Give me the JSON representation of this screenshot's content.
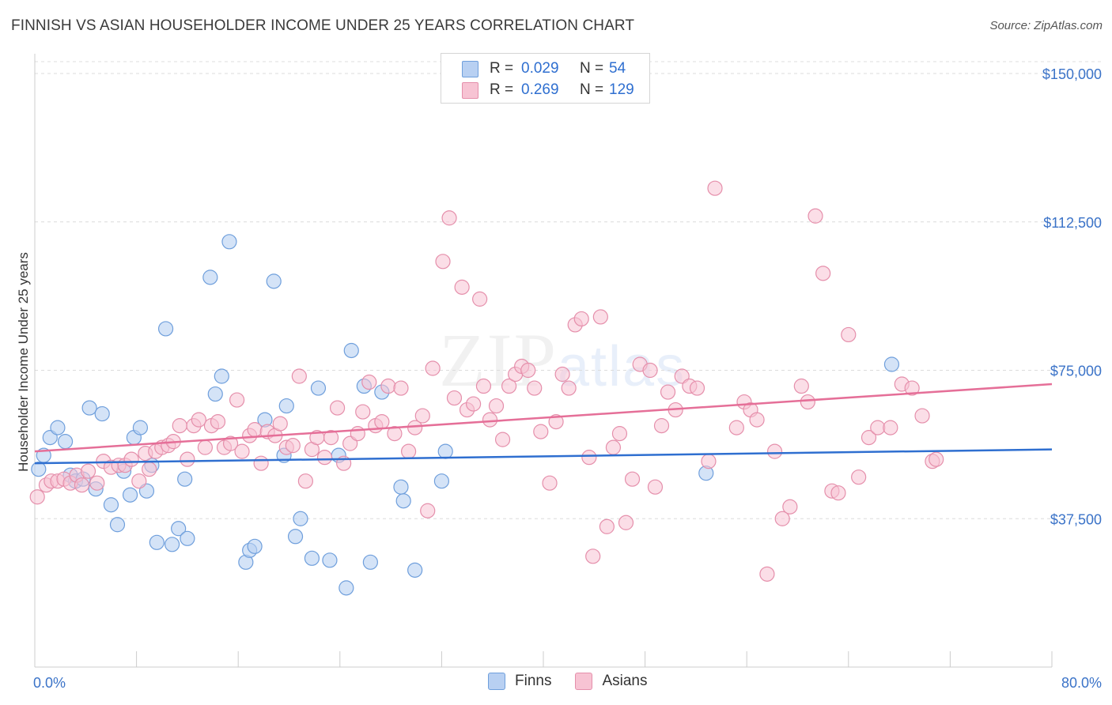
{
  "title": "FINNISH VS ASIAN HOUSEHOLDER INCOME UNDER 25 YEARS CORRELATION CHART",
  "source": "Source: ZipAtlas.com",
  "watermark": {
    "zip": "ZIP",
    "atlas": "atlas"
  },
  "legend": [
    {
      "r_label": "R =",
      "r_value": "0.029",
      "n_label": "N =",
      "n_value": "54"
    },
    {
      "r_label": "R =",
      "r_value": "0.269",
      "n_label": "N =",
      "n_value": "129"
    }
  ],
  "bottom_legend": [
    "Finns",
    "Asians"
  ],
  "colors": {
    "finns_fill": "#b8d0f2",
    "finns_stroke": "#6f9fdc",
    "finns_line": "#2f6fd0",
    "asians_fill": "#f7c3d3",
    "asians_stroke": "#e58fab",
    "asians_line": "#e56f98",
    "tick_label": "#3b73c8",
    "grid": "#dcdcdc"
  },
  "chart_data": {
    "type": "scatter",
    "xlabel": "",
    "ylabel": "Householder Income Under 25 years",
    "x_tick_labels": [
      "0.0%",
      "80.0%"
    ],
    "y_ticks": [
      37500,
      75000,
      112500,
      150000
    ],
    "y_tick_labels": [
      "$37,500",
      "$75,000",
      "$112,500",
      "$150,000"
    ],
    "xlim": [
      0,
      80
    ],
    "ylim": [
      0,
      153000
    ],
    "grid": "horizontal dashed",
    "series": [
      {
        "name": "Finns",
        "trend": [
          [
            0,
            51500
          ],
          [
            80,
            55000
          ]
        ],
        "points": [
          [
            0.3,
            50000
          ],
          [
            0.7,
            53500
          ],
          [
            1.2,
            58000
          ],
          [
            1.8,
            60500
          ],
          [
            2.4,
            57000
          ],
          [
            2.8,
            48500
          ],
          [
            3.2,
            47000
          ],
          [
            3.8,
            47500
          ],
          [
            4.3,
            65500
          ],
          [
            4.8,
            45000
          ],
          [
            5.3,
            64000
          ],
          [
            6.0,
            41000
          ],
          [
            6.5,
            36000
          ],
          [
            7.0,
            49500
          ],
          [
            7.5,
            43500
          ],
          [
            7.8,
            58000
          ],
          [
            8.3,
            60500
          ],
          [
            8.8,
            44500
          ],
          [
            9.2,
            51000
          ],
          [
            9.6,
            31500
          ],
          [
            10.3,
            85500
          ],
          [
            10.8,
            31000
          ],
          [
            11.3,
            35000
          ],
          [
            11.8,
            47500
          ],
          [
            12.0,
            32500
          ],
          [
            13.8,
            98500
          ],
          [
            14.2,
            69000
          ],
          [
            14.7,
            73500
          ],
          [
            15.3,
            107500
          ],
          [
            16.6,
            26500
          ],
          [
            16.9,
            29500
          ],
          [
            17.3,
            30500
          ],
          [
            18.1,
            62500
          ],
          [
            18.8,
            97500
          ],
          [
            19.6,
            53500
          ],
          [
            19.8,
            66000
          ],
          [
            20.5,
            33000
          ],
          [
            20.9,
            37500
          ],
          [
            21.8,
            27500
          ],
          [
            22.3,
            70500
          ],
          [
            23.2,
            27000
          ],
          [
            23.9,
            53500
          ],
          [
            24.5,
            20000
          ],
          [
            24.9,
            80000
          ],
          [
            25.9,
            71000
          ],
          [
            26.4,
            26500
          ],
          [
            27.3,
            69500
          ],
          [
            28.8,
            45500
          ],
          [
            29.0,
            42000
          ],
          [
            29.9,
            24500
          ],
          [
            32.0,
            47000
          ],
          [
            32.3,
            54500
          ],
          [
            52.8,
            49000
          ],
          [
            67.4,
            76500
          ]
        ]
      },
      {
        "name": "Asians",
        "trend": [
          [
            0,
            54500
          ],
          [
            80,
            71500
          ]
        ],
        "points": [
          [
            0.2,
            43000
          ],
          [
            0.9,
            46000
          ],
          [
            1.3,
            47000
          ],
          [
            1.8,
            47000
          ],
          [
            2.3,
            47500
          ],
          [
            2.8,
            46500
          ],
          [
            3.3,
            48500
          ],
          [
            3.7,
            46000
          ],
          [
            4.2,
            49500
          ],
          [
            4.9,
            46500
          ],
          [
            5.4,
            52000
          ],
          [
            6.0,
            50500
          ],
          [
            6.6,
            51000
          ],
          [
            7.1,
            51000
          ],
          [
            7.6,
            52500
          ],
          [
            8.2,
            47000
          ],
          [
            8.7,
            54000
          ],
          [
            9.0,
            50000
          ],
          [
            9.5,
            54500
          ],
          [
            10.0,
            55500
          ],
          [
            10.5,
            56000
          ],
          [
            10.9,
            57000
          ],
          [
            11.4,
            61000
          ],
          [
            12.0,
            52500
          ],
          [
            12.5,
            61000
          ],
          [
            12.9,
            62500
          ],
          [
            13.4,
            55500
          ],
          [
            13.9,
            61000
          ],
          [
            14.4,
            62000
          ],
          [
            14.9,
            55500
          ],
          [
            15.4,
            56500
          ],
          [
            15.9,
            67500
          ],
          [
            16.3,
            54500
          ],
          [
            16.9,
            58500
          ],
          [
            17.3,
            60000
          ],
          [
            17.8,
            51500
          ],
          [
            18.3,
            59500
          ],
          [
            18.9,
            58500
          ],
          [
            19.3,
            61500
          ],
          [
            19.8,
            55500
          ],
          [
            20.3,
            56000
          ],
          [
            20.8,
            73500
          ],
          [
            21.3,
            47000
          ],
          [
            21.8,
            55000
          ],
          [
            22.2,
            58000
          ],
          [
            22.8,
            53000
          ],
          [
            23.3,
            58000
          ],
          [
            23.8,
            65500
          ],
          [
            24.3,
            51500
          ],
          [
            24.8,
            56500
          ],
          [
            25.4,
            59000
          ],
          [
            25.8,
            64500
          ],
          [
            26.3,
            72000
          ],
          [
            26.8,
            61000
          ],
          [
            27.3,
            62000
          ],
          [
            27.8,
            71000
          ],
          [
            28.3,
            59000
          ],
          [
            28.8,
            70500
          ],
          [
            29.4,
            54500
          ],
          [
            29.9,
            60500
          ],
          [
            30.5,
            63500
          ],
          [
            30.9,
            39500
          ],
          [
            31.3,
            75500
          ],
          [
            32.1,
            102500
          ],
          [
            32.6,
            113500
          ],
          [
            33.0,
            68000
          ],
          [
            33.6,
            96000
          ],
          [
            34.0,
            65000
          ],
          [
            34.5,
            66500
          ],
          [
            35.0,
            93000
          ],
          [
            35.3,
            71000
          ],
          [
            35.8,
            62500
          ],
          [
            36.3,
            66000
          ],
          [
            36.8,
            57500
          ],
          [
            37.3,
            71000
          ],
          [
            37.8,
            74000
          ],
          [
            38.3,
            76000
          ],
          [
            38.8,
            75000
          ],
          [
            39.3,
            70500
          ],
          [
            39.8,
            59500
          ],
          [
            40.5,
            46500
          ],
          [
            41.0,
            62000
          ],
          [
            41.5,
            74000
          ],
          [
            42.0,
            70500
          ],
          [
            42.5,
            86500
          ],
          [
            43.0,
            88000
          ],
          [
            43.6,
            53000
          ],
          [
            43.9,
            28000
          ],
          [
            44.5,
            88500
          ],
          [
            45.0,
            35500
          ],
          [
            45.5,
            55500
          ],
          [
            46.0,
            59000
          ],
          [
            46.5,
            36500
          ],
          [
            47.0,
            47500
          ],
          [
            47.6,
            76500
          ],
          [
            48.4,
            75000
          ],
          [
            48.8,
            45500
          ],
          [
            49.3,
            61000
          ],
          [
            49.8,
            69500
          ],
          [
            50.4,
            65000
          ],
          [
            50.9,
            73500
          ],
          [
            51.5,
            71000
          ],
          [
            52.1,
            70500
          ],
          [
            53.0,
            52000
          ],
          [
            53.5,
            121000
          ],
          [
            55.2,
            60500
          ],
          [
            55.8,
            67000
          ],
          [
            56.3,
            65000
          ],
          [
            56.8,
            62500
          ],
          [
            57.6,
            23500
          ],
          [
            58.2,
            54500
          ],
          [
            58.8,
            37500
          ],
          [
            59.4,
            40500
          ],
          [
            60.3,
            71000
          ],
          [
            60.8,
            67000
          ],
          [
            61.4,
            114000
          ],
          [
            62.0,
            99500
          ],
          [
            62.7,
            44500
          ],
          [
            63.2,
            44000
          ],
          [
            64.0,
            84000
          ],
          [
            64.8,
            48000
          ],
          [
            65.6,
            58000
          ],
          [
            66.3,
            60500
          ],
          [
            67.3,
            60500
          ],
          [
            68.2,
            71500
          ],
          [
            69.0,
            70500
          ],
          [
            69.8,
            63500
          ],
          [
            70.6,
            52000
          ],
          [
            70.9,
            52500
          ]
        ]
      }
    ]
  }
}
